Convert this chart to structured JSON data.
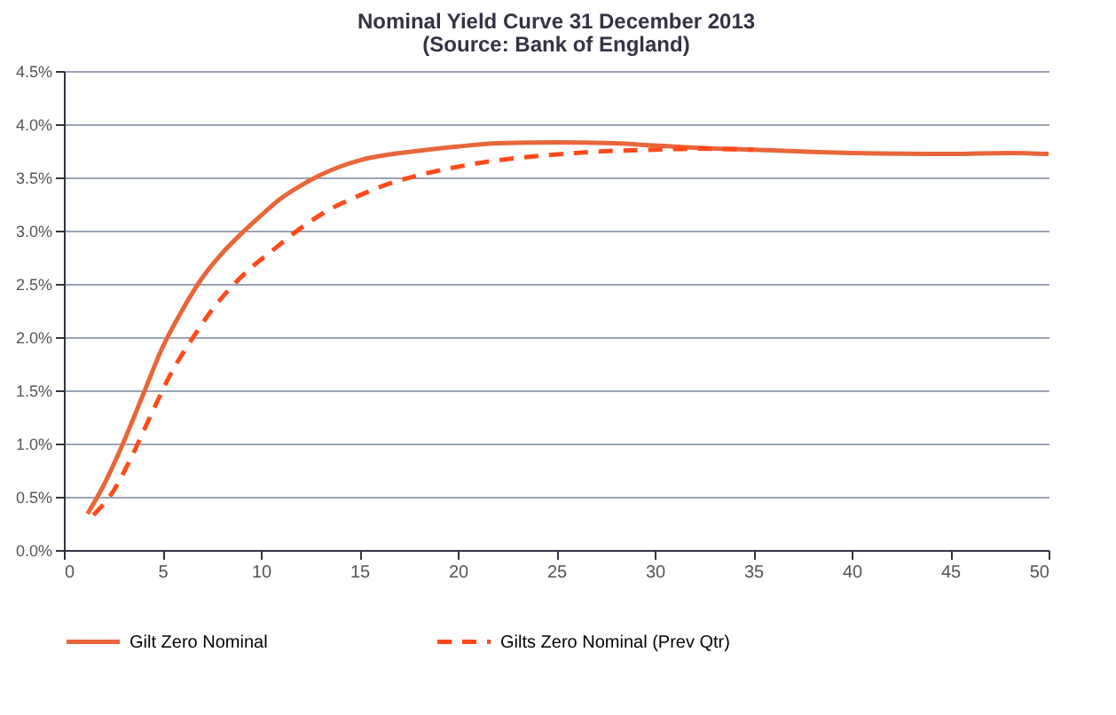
{
  "chart_data": {
    "type": "line",
    "title": "Nominal Yield Curve 31 December 2013",
    "subtitle": "(Source: Bank of England)",
    "xlim": [
      0,
      50
    ],
    "xticks": [
      0,
      5,
      10,
      15,
      20,
      25,
      30,
      35,
      40,
      45,
      50
    ],
    "ylim": [
      0,
      4.5
    ],
    "yticks": [
      {
        "value": 0,
        "label": "0.0%"
      },
      {
        "value": 0.5,
        "label": "0.5%"
      },
      {
        "value": 1,
        "label": "1.0%"
      },
      {
        "value": 1.5,
        "label": "1.5%"
      },
      {
        "value": 2,
        "label": "2.0%"
      },
      {
        "value": 2.5,
        "label": "2.5%"
      },
      {
        "value": 3,
        "label": "3.0%"
      },
      {
        "value": 3.5,
        "label": "3.5%"
      },
      {
        "value": 4,
        "label": "4.0%"
      },
      {
        "value": 4.5,
        "label": "4.5%"
      }
    ],
    "grid": "y",
    "legend": "bottom",
    "series": [
      {
        "name": "Gilt Zero Nominal",
        "color": "#e8663a",
        "line_style": "solid",
        "x": [
          1.2,
          2,
          3,
          4,
          5,
          6,
          7,
          8,
          9,
          10,
          11,
          12,
          13,
          14,
          15,
          16,
          18,
          20,
          22,
          25,
          28,
          30,
          32,
          35,
          38,
          40,
          45,
          48,
          50
        ],
        "values": [
          0.34,
          0.6,
          1.0,
          1.45,
          1.9,
          2.25,
          2.55,
          2.78,
          2.97,
          3.14,
          3.3,
          3.42,
          3.52,
          3.6,
          3.66,
          3.7,
          3.75,
          3.79,
          3.82,
          3.83,
          3.82,
          3.8,
          3.78,
          3.76,
          3.74,
          3.73,
          3.72,
          3.73,
          3.72
        ]
      },
      {
        "name": "Gilts Zero Nominal (Prev Qtr)",
        "color": "#ff4a1a",
        "line_style": "dashed",
        "x": [
          1.5,
          2.5,
          3.5,
          4.5,
          5.5,
          6.5,
          7.5,
          8.5,
          9.5,
          10.5,
          12,
          13.5,
          15,
          16.5,
          18,
          20,
          22,
          24,
          26,
          28,
          30,
          32,
          35
        ],
        "values": [
          0.33,
          0.55,
          0.9,
          1.3,
          1.68,
          1.98,
          2.25,
          2.47,
          2.65,
          2.8,
          3.02,
          3.2,
          3.33,
          3.44,
          3.52,
          3.6,
          3.66,
          3.7,
          3.73,
          3.75,
          3.76,
          3.77,
          3.76
        ]
      }
    ]
  }
}
